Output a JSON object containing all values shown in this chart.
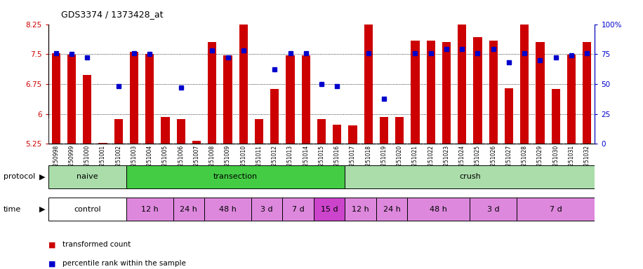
{
  "title": "GDS3374 / 1373428_at",
  "samples": [
    "GSM250998",
    "GSM250999",
    "GSM251000",
    "GSM251001",
    "GSM251002",
    "GSM251003",
    "GSM251004",
    "GSM251005",
    "GSM251006",
    "GSM251007",
    "GSM251008",
    "GSM251009",
    "GSM251010",
    "GSM251011",
    "GSM251012",
    "GSM251013",
    "GSM251014",
    "GSM251015",
    "GSM251016",
    "GSM251017",
    "GSM251018",
    "GSM251019",
    "GSM251020",
    "GSM251021",
    "GSM251022",
    "GSM251023",
    "GSM251024",
    "GSM251025",
    "GSM251026",
    "GSM251027",
    "GSM251028",
    "GSM251029",
    "GSM251030",
    "GSM251031",
    "GSM251032"
  ],
  "bar_values": [
    7.52,
    7.48,
    6.98,
    5.27,
    5.88,
    7.56,
    7.51,
    5.92,
    5.87,
    5.32,
    7.81,
    7.47,
    8.35,
    5.87,
    6.62,
    7.47,
    7.47,
    5.88,
    5.73,
    5.72,
    8.67,
    5.93,
    5.93,
    7.83,
    7.83,
    7.81,
    8.67,
    7.92,
    7.83,
    6.65,
    8.35,
    7.8,
    6.62,
    7.48,
    7.8
  ],
  "blue_values": [
    76,
    75,
    72,
    null,
    48,
    76,
    75,
    null,
    47,
    null,
    78,
    72,
    78,
    null,
    62,
    76,
    76,
    50,
    48,
    null,
    76,
    38,
    null,
    76,
    76,
    79,
    79,
    76,
    79,
    68,
    76,
    70,
    72,
    74,
    76
  ],
  "ylim_left": [
    5.25,
    8.25
  ],
  "ylim_right": [
    0,
    100
  ],
  "yticks_left": [
    5.25,
    6.0,
    6.75,
    7.5,
    8.25
  ],
  "ytick_labels_left": [
    "5.25",
    "6",
    "6.75",
    "7.5",
    "8.25"
  ],
  "yticks_right": [
    0,
    25,
    50,
    75,
    100
  ],
  "ytick_labels_right": [
    "0",
    "25",
    "50",
    "75",
    "100%"
  ],
  "bar_color": "#cc0000",
  "blue_color": "#0000cc",
  "grid_color": "#aaaaaa",
  "xtick_bg": "#cccccc",
  "protocol_groups": [
    {
      "label": "naive",
      "start": 0,
      "end": 5,
      "color": "#aaddaa"
    },
    {
      "label": "transection",
      "start": 5,
      "end": 19,
      "color": "#44cc44"
    },
    {
      "label": "crush",
      "start": 19,
      "end": 35,
      "color": "#aaddaa"
    }
  ],
  "time_groups": [
    {
      "label": "control",
      "start": 0,
      "end": 5,
      "color": "#ffffff"
    },
    {
      "label": "12 h",
      "start": 5,
      "end": 8,
      "color": "#dd88dd"
    },
    {
      "label": "24 h",
      "start": 8,
      "end": 10,
      "color": "#dd88dd"
    },
    {
      "label": "48 h",
      "start": 10,
      "end": 13,
      "color": "#dd88dd"
    },
    {
      "label": "3 d",
      "start": 13,
      "end": 15,
      "color": "#dd88dd"
    },
    {
      "label": "7 d",
      "start": 15,
      "end": 17,
      "color": "#dd88dd"
    },
    {
      "label": "15 d",
      "start": 17,
      "end": 19,
      "color": "#cc44cc"
    },
    {
      "label": "12 h",
      "start": 19,
      "end": 21,
      "color": "#dd88dd"
    },
    {
      "label": "24 h",
      "start": 21,
      "end": 23,
      "color": "#dd88dd"
    },
    {
      "label": "48 h",
      "start": 23,
      "end": 27,
      "color": "#dd88dd"
    },
    {
      "label": "3 d",
      "start": 27,
      "end": 30,
      "color": "#dd88dd"
    },
    {
      "label": "7 d",
      "start": 30,
      "end": 35,
      "color": "#dd88dd"
    }
  ],
  "legend_items": [
    {
      "label": "transformed count",
      "color": "#cc0000"
    },
    {
      "label": "percentile rank within the sample",
      "color": "#0000cc"
    }
  ]
}
